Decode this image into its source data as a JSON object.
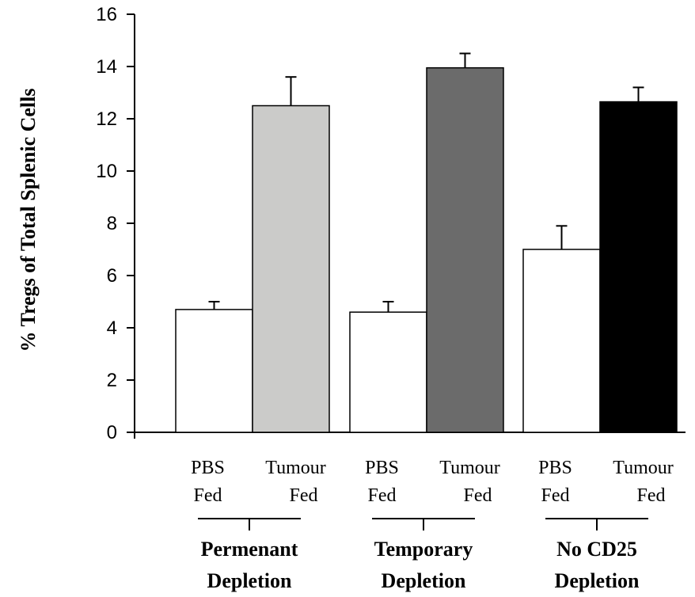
{
  "chart_data": {
    "type": "bar",
    "title": "",
    "xlabel": "",
    "ylabel": "% Tregs of Total Splenic Cells",
    "ylim": [
      0,
      16
    ],
    "yticks": [
      0,
      2,
      4,
      6,
      8,
      10,
      12,
      14,
      16
    ],
    "grid": false,
    "groups": [
      {
        "label": [
          "Permenant",
          "Depletion"
        ],
        "bars": [
          {
            "label": [
              "PBS",
              "Fed"
            ],
            "value": 4.7,
            "error": 0.3,
            "color": "#ffffff"
          },
          {
            "label": [
              "Tumour",
              "Fed"
            ],
            "value": 12.5,
            "error": 1.1,
            "color": "#cbcbc9"
          }
        ]
      },
      {
        "label": [
          "Temporary",
          "Depletion"
        ],
        "bars": [
          {
            "label": [
              "PBS",
              "Fed"
            ],
            "value": 4.6,
            "error": 0.4,
            "color": "#ffffff"
          },
          {
            "label": [
              "Tumour",
              "Fed"
            ],
            "value": 13.95,
            "error": 0.55,
            "color": "#6b6b6b"
          }
        ]
      },
      {
        "label": [
          "No CD25",
          "Depletion"
        ],
        "bars": [
          {
            "label": [
              "PBS",
              "Fed"
            ],
            "value": 7.0,
            "error": 0.9,
            "color": "#ffffff"
          },
          {
            "label": [
              "Tumour",
              "Fed"
            ],
            "value": 12.65,
            "error": 0.55,
            "color": "#000000"
          }
        ]
      }
    ]
  }
}
